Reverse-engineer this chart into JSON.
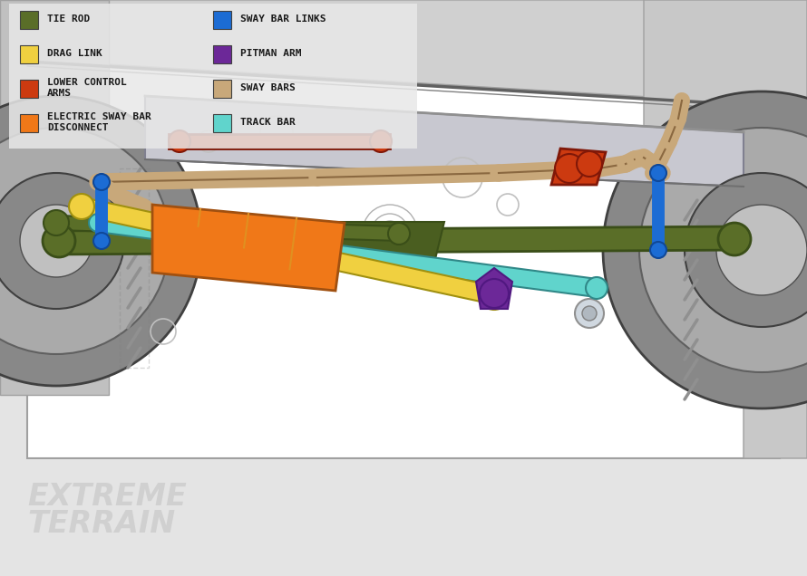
{
  "bg_color": "#e4e4e4",
  "legend_bg": "#e8e8e8",
  "legend_items_left": [
    {
      "label": "TIE ROD",
      "color": "#5a6e28",
      "multiline": false
    },
    {
      "label": "DRAG LINK",
      "color": "#f0d040",
      "multiline": false
    },
    {
      "label": "LOWER CONTROL\nARMS",
      "color": "#cc3a10",
      "multiline": true
    },
    {
      "label": "ELECTRIC SWAY BAR\nDISCONNECT",
      "color": "#f07818",
      "multiline": true
    }
  ],
  "legend_items_right": [
    {
      "label": "SWAY BAR LINKS",
      "color": "#1c6cd4",
      "multiline": false
    },
    {
      "label": "PITMAN ARM",
      "color": "#6c2898",
      "multiline": false
    },
    {
      "label": "SWAY BARS",
      "color": "#c8a87a",
      "multiline": false
    },
    {
      "label": "TRACK BAR",
      "color": "#60d4cc",
      "multiline": false
    }
  ],
  "watermark_color": "#c8c8c8",
  "outline_color": "#a0a0a0",
  "body_color": "#d8d8d8",
  "axle_color": "#5a6e28",
  "tie_rod_color": "#5a6e28",
  "drag_link_color": "#f0d040",
  "track_bar_color": "#60d4cc",
  "sway_bar_color": "#c8a87a",
  "sway_bar_link_color": "#1c6cd4",
  "pitman_arm_color": "#6c2898",
  "lca_color": "#cc3a10",
  "electric_sway_color": "#f07818",
  "frame_fill": "#c0c8d0"
}
